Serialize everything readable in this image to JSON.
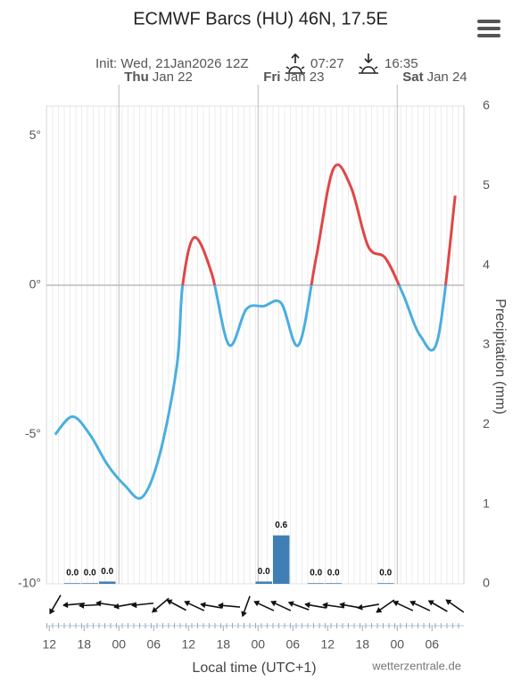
{
  "chart_data": {
    "type": "line",
    "title": "ECMWF Barcs (HU) 46N, 17.5E",
    "subtitle": "Init: Wed, 21Jan2026 12Z",
    "sunrise": "07:27",
    "sunset": "16:35",
    "days": [
      {
        "day": "Thu",
        "date": "Jan 22",
        "x": 24
      },
      {
        "day": "Fri",
        "date": "Jan 23",
        "x": 48
      },
      {
        "day": "Sat",
        "date": "Jan 24",
        "x": 72
      }
    ],
    "x_label": "Local time (UTC+1)",
    "y2_label": "Precipitation (mm)",
    "source": "wetterzentrale.de",
    "xlim": [
      11.5,
      83.5
    ],
    "xticks": [
      {
        "value": 12,
        "label": "12"
      },
      {
        "value": 18,
        "label": "18"
      },
      {
        "value": 24,
        "label": "00"
      },
      {
        "value": 30,
        "label": "06"
      },
      {
        "value": 36,
        "label": "12"
      },
      {
        "value": 42,
        "label": "18"
      },
      {
        "value": 48,
        "label": "00"
      },
      {
        "value": 54,
        "label": "06"
      },
      {
        "value": 60,
        "label": "12"
      },
      {
        "value": 66,
        "label": "18"
      },
      {
        "value": 72,
        "label": "00"
      },
      {
        "value": 78,
        "label": "06"
      }
    ],
    "ylim": [
      -10,
      6
    ],
    "yticks": [
      {
        "value": 5,
        "label": "5°"
      },
      {
        "value": 0,
        "label": "0°"
      },
      {
        "value": -5,
        "label": "-5°"
      },
      {
        "value": -10,
        "label": "-10°"
      }
    ],
    "y2lim": [
      0,
      6
    ],
    "y2ticks": [
      0,
      1,
      2,
      3,
      4,
      5,
      6
    ],
    "zero_line": true,
    "series": [
      {
        "type": "line",
        "color_above": "#e04646",
        "color_below": "#4aaee0",
        "x": [
          13,
          16,
          19,
          22,
          25,
          28,
          31,
          34,
          35,
          37,
          40,
          43,
          46,
          49,
          52,
          55,
          58,
          61,
          64,
          67,
          70,
          73,
          76,
          79,
          82
        ],
        "values": [
          -5.0,
          -4.4,
          -5.0,
          -6.0,
          -6.7,
          -7.1,
          -5.7,
          -2.7,
          0.0,
          1.6,
          0.4,
          -2.0,
          -0.8,
          -0.7,
          -0.6,
          -2.0,
          0.9,
          3.9,
          3.3,
          1.3,
          0.9,
          -0.3,
          -1.7,
          -1.8,
          3.0
        ]
      },
      {
        "type": "bar",
        "axis": "y2",
        "color": "#3f7fb5",
        "x": [
          16,
          19,
          22,
          49,
          52,
          58,
          61,
          70
        ],
        "values": [
          0,
          0,
          0.02,
          0.02,
          0.6,
          0,
          0,
          0
        ],
        "value_labels": [
          "0.0",
          "0.0",
          "0.0",
          "0.0",
          "0.6",
          "0.0",
          "0.0",
          "0.0"
        ]
      }
    ]
  }
}
